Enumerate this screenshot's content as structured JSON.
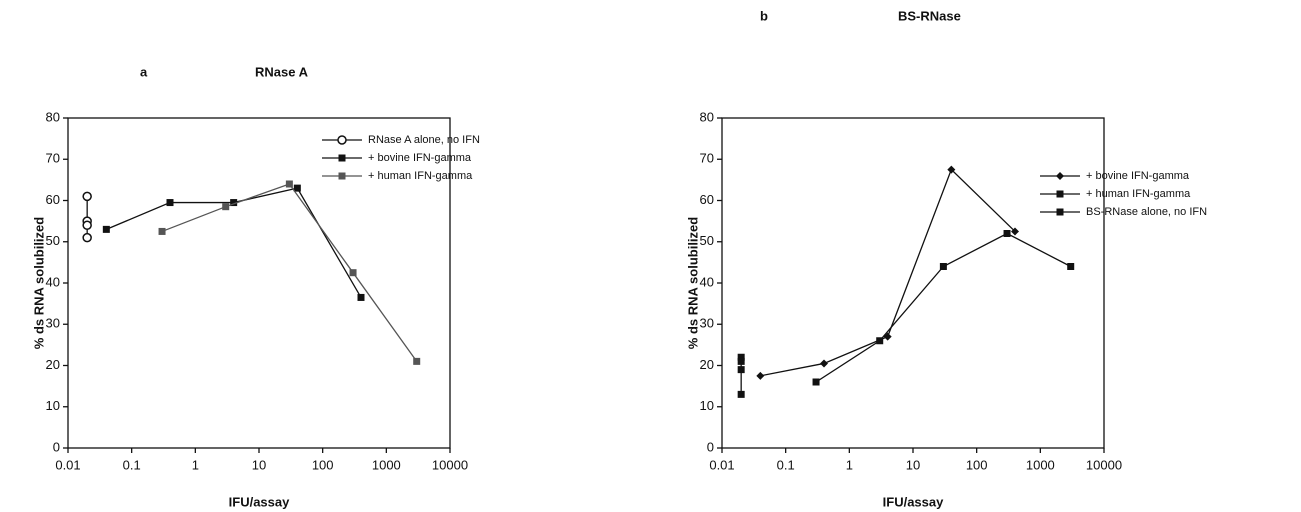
{
  "chart_data": [
    {
      "type": "line",
      "panel_label": "a",
      "title": "RNase  A",
      "xlabel": "IFU/assay",
      "ylabel": "% ds RNA solubilized",
      "xscale": "log",
      "xlim": [
        0.01,
        10000
      ],
      "xticks": [
        0.01,
        0.1,
        1,
        10,
        100,
        1000,
        10000
      ],
      "ylim": [
        0,
        80
      ],
      "yticks": [
        0,
        10,
        20,
        30,
        40,
        50,
        60,
        70,
        80
      ],
      "grid": false,
      "legend": "upper right",
      "series": [
        {
          "name": "RNase A alone, no IFN",
          "color": "#111111",
          "marker": "circle-open",
          "x": [
            0.02,
            0.02,
            0.02,
            0.02
          ],
          "values": [
            61,
            55,
            54,
            51
          ]
        },
        {
          "name": "+ bovine IFN-gamma",
          "color": "#111111",
          "marker": "square",
          "x": [
            0.04,
            0.4,
            4,
            40,
            400
          ],
          "values": [
            53,
            59.5,
            59.5,
            63,
            36.5
          ]
        },
        {
          "name": "+ human IFN-gamma",
          "color": "#555555",
          "marker": "square",
          "x": [
            0.3,
            3,
            30,
            300,
            3000
          ],
          "values": [
            52.5,
            58.5,
            64,
            42.5,
            21
          ]
        }
      ]
    },
    {
      "type": "line",
      "panel_label": "b",
      "title": "BS-RNase",
      "xlabel": "IFU/assay",
      "ylabel": "% ds RNA solubilized",
      "xscale": "log",
      "xlim": [
        0.01,
        10000
      ],
      "xticks": [
        0.01,
        0.1,
        1,
        10,
        100,
        1000,
        10000
      ],
      "ylim": [
        0,
        80
      ],
      "yticks": [
        0,
        10,
        20,
        30,
        40,
        50,
        60,
        70,
        80
      ],
      "grid": false,
      "legend": "right",
      "series": [
        {
          "name": "+ bovine IFN-gamma",
          "color": "#111111",
          "marker": "diamond",
          "x": [
            0.04,
            0.4,
            4,
            40,
            400
          ],
          "values": [
            17.5,
            20.5,
            27,
            67.5,
            52.5
          ]
        },
        {
          "name": "+ human IFN-gamma",
          "color": "#111111",
          "marker": "square",
          "x": [
            0.3,
            3,
            30,
            300,
            3000
          ],
          "values": [
            16,
            26,
            44,
            52,
            44
          ]
        },
        {
          "name": "BS-RNase alone, no IFN",
          "color": "#111111",
          "marker": "square",
          "x": [
            0.02,
            0.02,
            0.02,
            0.02
          ],
          "values": [
            22,
            21,
            19,
            13
          ]
        }
      ]
    }
  ]
}
